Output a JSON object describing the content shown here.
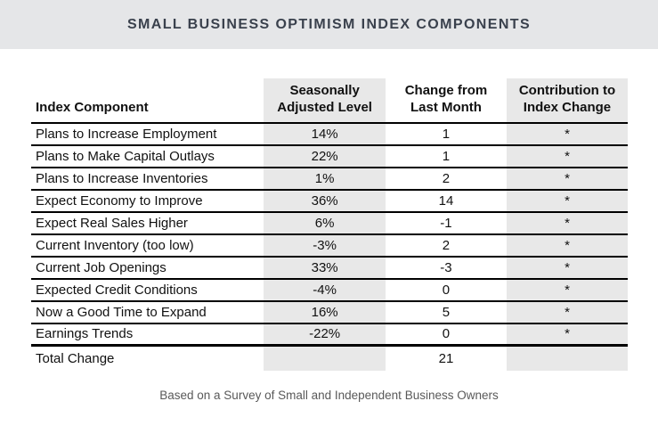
{
  "chart_data": {
    "type": "table",
    "title": "SMALL BUSINESS OPTIMISM INDEX COMPONENTS",
    "columns": [
      "Index Component",
      "Seasonally Adjusted Level",
      "Change from Last Month",
      "Contribution to Index Change"
    ],
    "headers": [
      "Index Component",
      "Seasonally\nAdjusted Level",
      "Change from\nLast Month",
      "Contribution to\nIndex Change"
    ],
    "rows": [
      {
        "component": "Plans to Increase Employment",
        "level": "14%",
        "change": "1",
        "contribution": "*"
      },
      {
        "component": "Plans to Make Capital Outlays",
        "level": "22%",
        "change": "1",
        "contribution": "*"
      },
      {
        "component": "Plans to Increase Inventories",
        "level": "1%",
        "change": "2",
        "contribution": "*"
      },
      {
        "component": "Expect Economy to Improve",
        "level": "36%",
        "change": "14",
        "contribution": "*"
      },
      {
        "component": "Expect Real Sales Higher",
        "level": "6%",
        "change": "-1",
        "contribution": "*"
      },
      {
        "component": "Current Inventory (too low)",
        "level": "-3%",
        "change": "2",
        "contribution": "*"
      },
      {
        "component": "Current Job Openings",
        "level": "33%",
        "change": "-3",
        "contribution": "*"
      },
      {
        "component": "Expected Credit Conditions",
        "level": "-4%",
        "change": "0",
        "contribution": "*"
      },
      {
        "component": "Now a Good Time to Expand",
        "level": "16%",
        "change": "5",
        "contribution": "*"
      },
      {
        "component": "Earnings Trends",
        "level": "-22%",
        "change": "0",
        "contribution": "*"
      }
    ],
    "total": {
      "label": "Total Change",
      "level": "",
      "change": "21",
      "contribution": ""
    },
    "caption": "Based on a Survey of Small and Independent Business Owners",
    "legend_position": "none",
    "grid": "horizontal-rules"
  },
  "colors": {
    "title_bar_bg": "#e5e6e8",
    "title_text": "#3a414d",
    "column_shade": "#e8e8e8",
    "rule": "#000000",
    "body_text": "#111111",
    "caption_text": "#595959"
  }
}
